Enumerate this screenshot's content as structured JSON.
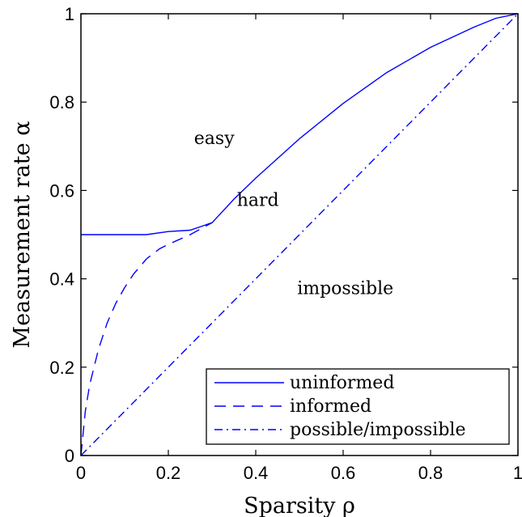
{
  "chart_data": {
    "type": "line",
    "xlabel": "Sparsity ρ",
    "ylabel": "Measurement rate α",
    "xlim": [
      0,
      1
    ],
    "ylim": [
      0,
      1
    ],
    "xticks": [
      "0",
      "0.2",
      "0.4",
      "0.6",
      "0.8",
      "1"
    ],
    "yticks": [
      "0",
      "0.2",
      "0.4",
      "0.6",
      "0.8",
      "1"
    ],
    "grid": false,
    "legend_position": "bottom-right",
    "series": [
      {
        "name": "uninformed",
        "style": "solid",
        "color": "#0000ff",
        "x": [
          0,
          0.05,
          0.1,
          0.15,
          0.2,
          0.25,
          0.3,
          0.35,
          0.4,
          0.5,
          0.6,
          0.7,
          0.8,
          0.9,
          0.95,
          1.0
        ],
        "y": [
          0.5,
          0.5,
          0.5,
          0.5,
          0.507,
          0.51,
          0.527,
          0.58,
          0.628,
          0.717,
          0.797,
          0.867,
          0.924,
          0.97,
          0.99,
          1.0
        ]
      },
      {
        "name": "informed",
        "style": "dashed",
        "color": "#0000ff",
        "x": [
          0,
          0.01,
          0.02,
          0.04,
          0.06,
          0.08,
          0.1,
          0.12,
          0.15,
          0.18,
          0.2,
          0.25,
          0.3
        ],
        "y": [
          0,
          0.1,
          0.16,
          0.24,
          0.3,
          0.345,
          0.38,
          0.41,
          0.445,
          0.468,
          0.478,
          0.5,
          0.527
        ]
      },
      {
        "name": "possible/impossible",
        "style": "dashdot",
        "color": "#0000ff",
        "x": [
          0,
          1
        ],
        "y": [
          0,
          1
        ]
      }
    ],
    "annotations": [
      {
        "text": "easy",
        "x": 0.305,
        "y": 0.705
      },
      {
        "text": "hard",
        "x": 0.405,
        "y": 0.565
      },
      {
        "text": "impossible",
        "x": 0.605,
        "y": 0.365
      }
    ]
  }
}
